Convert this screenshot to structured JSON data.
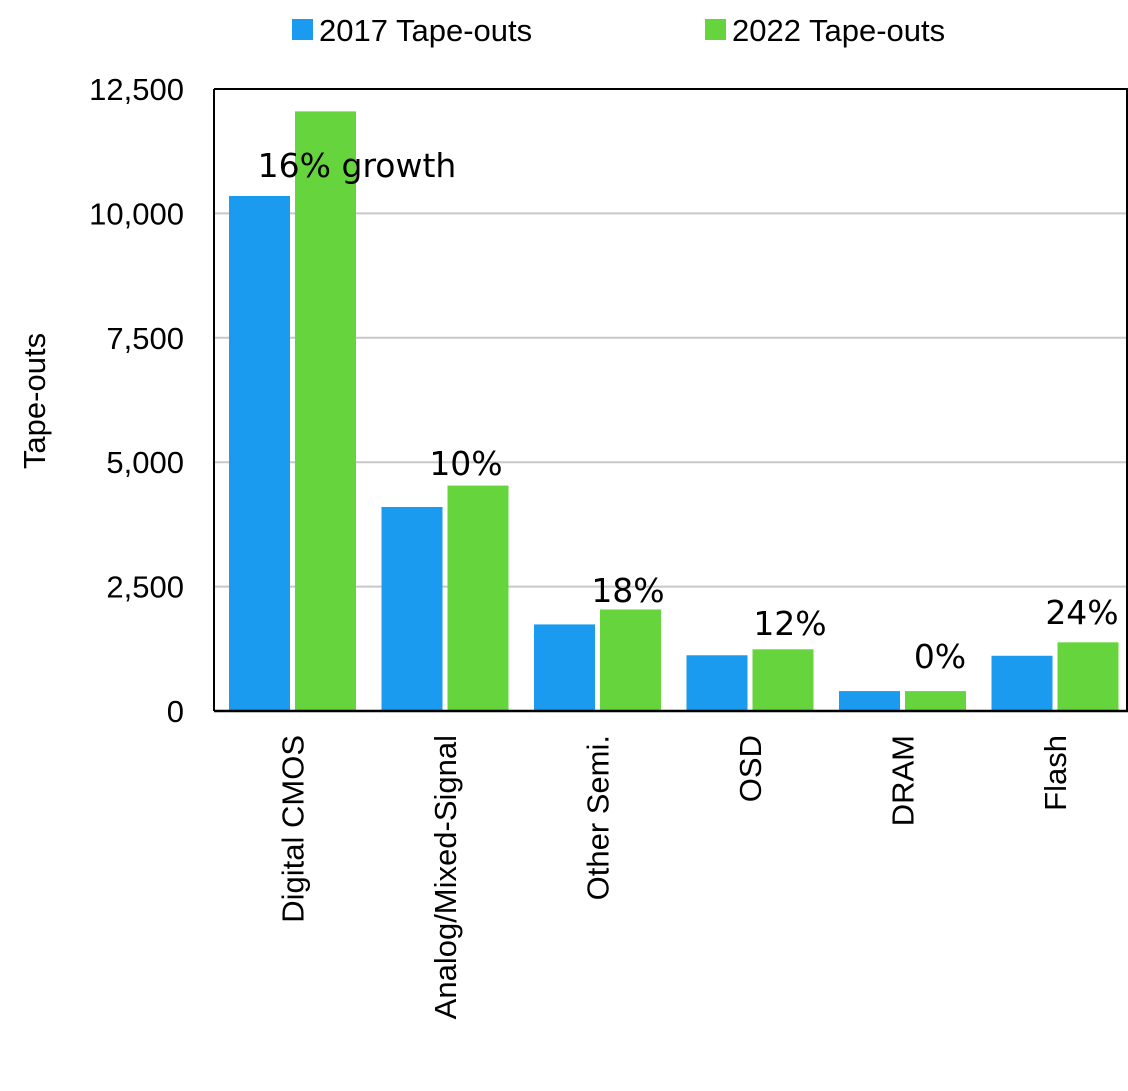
{
  "chart_data": {
    "type": "bar",
    "categories": [
      "Digital CMOS",
      "Analog/Mixed-Signal",
      "Other Semi.",
      "OSD",
      "DRAM",
      "Flash"
    ],
    "series": [
      {
        "name": "2017 Tape-outs",
        "color": "#1a9bf0",
        "values": [
          10350,
          4100,
          1740,
          1120,
          400,
          1110
        ]
      },
      {
        "name": "2022 Tape-outs",
        "color": "#66d43c",
        "values": [
          12050,
          4530,
          2040,
          1240,
          400,
          1380
        ]
      }
    ],
    "annotations": [
      "16% growth",
      "10%",
      "18%",
      "12%",
      "0%",
      "24%"
    ],
    "ylabel": "Tape-outs",
    "xlabel": "",
    "title": "",
    "ylim": [
      0,
      12500
    ],
    "yticks": [
      0,
      2500,
      5000,
      7500,
      10000,
      12500
    ],
    "ytick_labels": [
      "0",
      "2,500",
      "5,000",
      "7,500",
      "10,000",
      "12,500"
    ],
    "grid": "horizontal",
    "legend_position": "top"
  }
}
